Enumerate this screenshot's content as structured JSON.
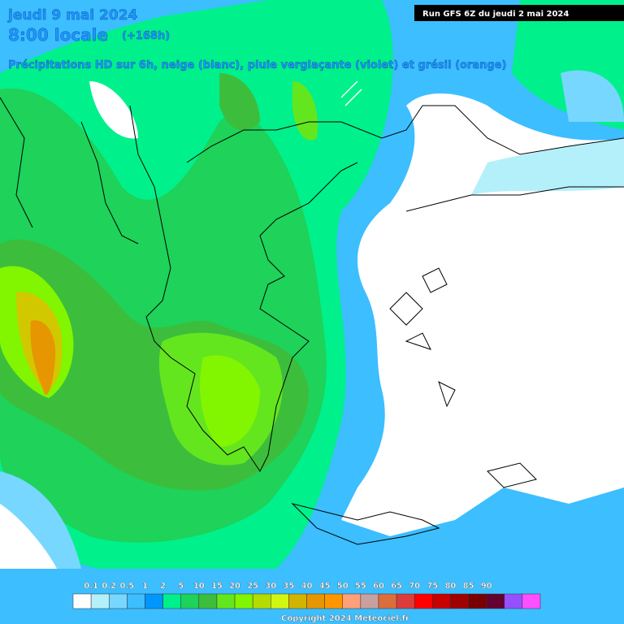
{
  "header": {
    "date": "jeudi 9 mai 2024",
    "time": "8:00 locale",
    "lead": "(+168h)",
    "subtitle": "Précipitations HD sur 6h, neige (blanc), pluie verglaçante (violet) et grésil (orange)",
    "run": "Run GFS 6Z du jeudi 2 mai 2024"
  },
  "legend": {
    "labels": [
      "0.1",
      "0.2",
      "0.5",
      "1",
      "2",
      "5",
      "10",
      "15",
      "20",
      "25",
      "30",
      "35",
      "40",
      "45",
      "50",
      "55",
      "60",
      "65",
      "70",
      "75",
      "80",
      "85",
      "90"
    ],
    "colors": [
      "#ffffff",
      "#b4f0fa",
      "#78d7ff",
      "#3cbeff",
      "#0096ff",
      "#00f08c",
      "#1ed25a",
      "#3cbe3c",
      "#64e61e",
      "#82f500",
      "#b4dc00",
      "#d2f514",
      "#d2b400",
      "#e69600",
      "#ff9600",
      "#ffa078",
      "#c8a0a0",
      "#dc6e3c",
      "#dc3c3c",
      "#ff0000",
      "#c80000",
      "#a00000",
      "#780000",
      "#640032",
      "#9650ff",
      "#ff50ff"
    ]
  },
  "footer": {
    "copyright": "Copyright 2024 Meteociel.fr"
  }
}
